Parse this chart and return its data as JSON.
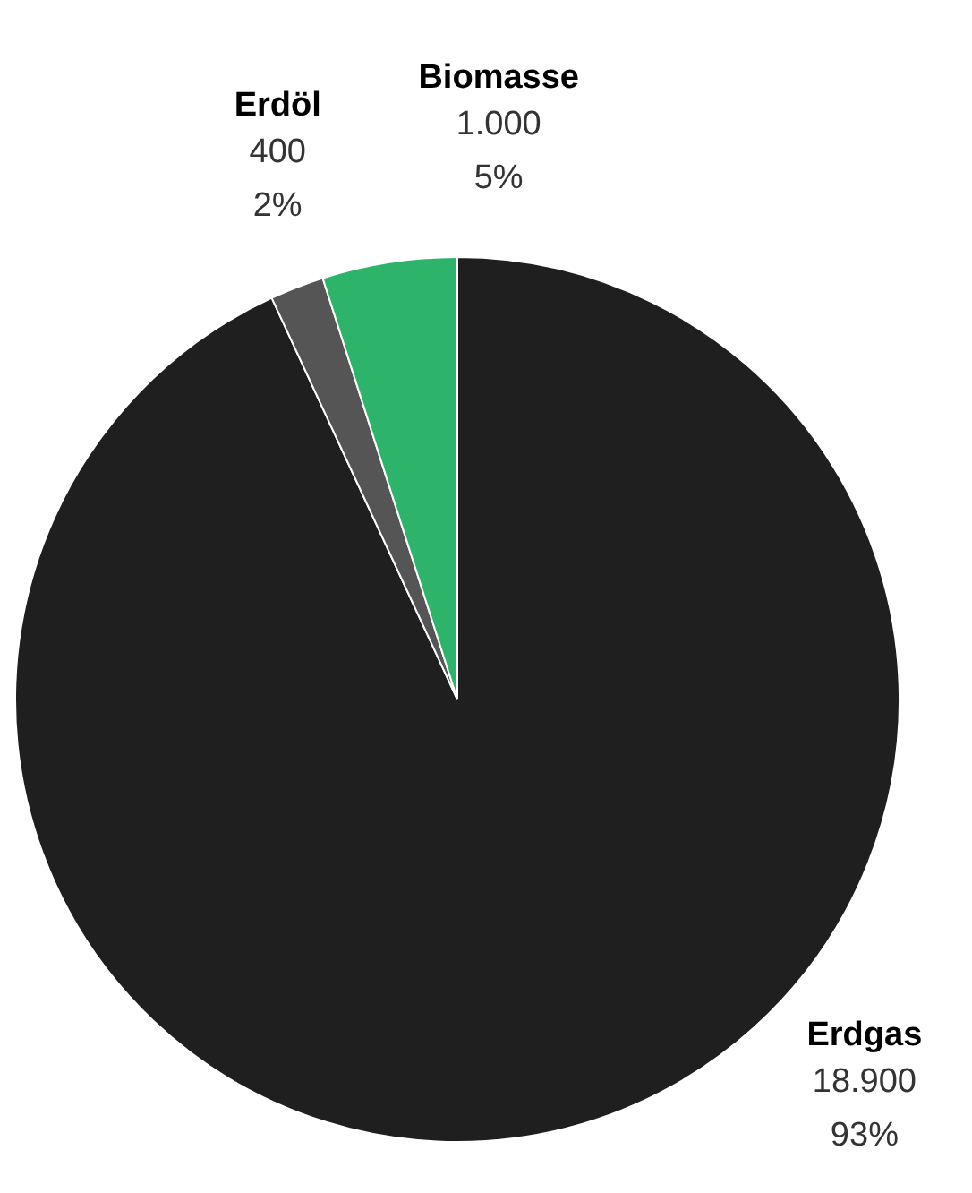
{
  "chart_data": {
    "type": "pie",
    "categories": [
      "Erdgas",
      "Erdöl",
      "Biomasse"
    ],
    "values": [
      18900,
      400,
      1000
    ],
    "colors": [
      "#1f1f1f",
      "#555555",
      "#2eb36b"
    ],
    "value_labels": [
      "18.900\n93%",
      "400\n2%",
      "1.000\n5%"
    ]
  }
}
